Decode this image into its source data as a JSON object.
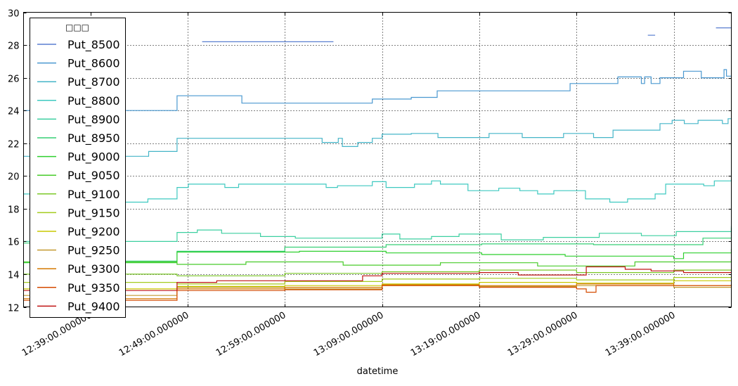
{
  "chart_data": {
    "type": "line",
    "title": "",
    "xlabel": "datetime",
    "ylabel": "",
    "ylim": [
      12,
      30
    ],
    "xlim": [
      "12:32:08",
      "13:44:55"
    ],
    "yticks": [
      12,
      14,
      16,
      18,
      20,
      22,
      24,
      26,
      28,
      30
    ],
    "xticks": [
      "12:39:00",
      "12:49:00",
      "12:59:00",
      "13:09:00",
      "13:19:00",
      "13:29:00",
      "13:39:00"
    ],
    "xtick_labels": [
      "12:39:00.000000",
      "12:49:00.000000",
      "12:59:00.000000",
      "13:09:00.000000",
      "13:19:00.000000",
      "13:29:00.000000",
      "13:39:00.000000"
    ],
    "grid": true,
    "legend": {
      "title": "□□□",
      "placement": "upper-left"
    },
    "step": true,
    "series": [
      {
        "name": "Put_8500",
        "color": "#5a7fd0",
        "segments": [
          [
            [
              "12:50:30",
              28.2
            ],
            [
              "13:04:00",
              28.2
            ]
          ],
          [
            [
              "13:36:20",
              28.6
            ],
            [
              "13:37:05",
              28.6
            ]
          ],
          [
            [
              "13:43:20",
              29.05
            ],
            [
              "13:44:55",
              29.1
            ]
          ]
        ]
      },
      {
        "name": "Put_8600",
        "color": "#4a98d0",
        "points": [
          [
            "12:32:08",
            24.0
          ],
          [
            "12:47:55",
            24.9
          ],
          [
            "12:54:35",
            24.45
          ],
          [
            "13:08:00",
            24.7
          ],
          [
            "13:12:00",
            24.8
          ],
          [
            "13:14:40",
            25.2
          ],
          [
            "13:28:20",
            25.65
          ],
          [
            "13:33:15",
            26.05
          ],
          [
            "13:35:40",
            25.65
          ],
          [
            "13:36:00",
            26.05
          ],
          [
            "13:36:40",
            25.65
          ],
          [
            "13:37:35",
            26.0
          ],
          [
            "13:40:00",
            26.4
          ],
          [
            "13:41:50",
            26.0
          ],
          [
            "13:44:10",
            26.5
          ],
          [
            "13:44:25",
            26.1
          ],
          [
            "13:44:55",
            26.1
          ]
        ]
      },
      {
        "name": "Put_8700",
        "color": "#45b5c8",
        "points": [
          [
            "12:32:08",
            21.2
          ],
          [
            "12:45:00",
            21.5
          ],
          [
            "12:47:55",
            22.3
          ],
          [
            "13:02:50",
            22.05
          ],
          [
            "13:04:30",
            22.3
          ],
          [
            "13:04:55",
            21.8
          ],
          [
            "13:06:30",
            22.05
          ],
          [
            "13:08:00",
            22.3
          ],
          [
            "13:09:00",
            22.55
          ],
          [
            "13:12:00",
            22.6
          ],
          [
            "13:14:45",
            22.35
          ],
          [
            "13:20:00",
            22.6
          ],
          [
            "13:23:25",
            22.35
          ],
          [
            "13:27:40",
            22.6
          ],
          [
            "13:30:45",
            22.35
          ],
          [
            "13:32:45",
            22.8
          ],
          [
            "13:37:35",
            23.2
          ],
          [
            "13:38:50",
            23.4
          ],
          [
            "13:40:05",
            23.2
          ],
          [
            "13:41:30",
            23.4
          ],
          [
            "13:44:00",
            23.2
          ],
          [
            "13:44:35",
            23.5
          ],
          [
            "13:44:55",
            23.5
          ]
        ]
      },
      {
        "name": "Put_8800",
        "color": "#3ec9c0",
        "points": [
          [
            "12:32:08",
            18.9
          ],
          [
            "12:42:35",
            18.4
          ],
          [
            "12:44:55",
            18.6
          ],
          [
            "12:47:55",
            19.3
          ],
          [
            "12:49:05",
            19.5
          ],
          [
            "12:52:50",
            19.3
          ],
          [
            "12:54:15",
            19.5
          ],
          [
            "13:03:15",
            19.3
          ],
          [
            "13:04:25",
            19.4
          ],
          [
            "13:08:00",
            19.65
          ],
          [
            "13:09:25",
            19.3
          ],
          [
            "13:12:20",
            19.5
          ],
          [
            "13:14:05",
            19.7
          ],
          [
            "13:15:00",
            19.5
          ],
          [
            "13:17:50",
            19.1
          ],
          [
            "13:21:00",
            19.25
          ],
          [
            "13:23:10",
            19.1
          ],
          [
            "13:25:00",
            18.9
          ],
          [
            "13:26:40",
            19.1
          ],
          [
            "13:29:55",
            18.6
          ],
          [
            "13:32:25",
            18.4
          ],
          [
            "13:34:15",
            18.6
          ],
          [
            "13:37:05",
            18.9
          ],
          [
            "13:38:10",
            19.5
          ],
          [
            "13:42:05",
            19.4
          ],
          [
            "13:43:10",
            19.7
          ],
          [
            "13:44:55",
            19.8
          ]
        ]
      },
      {
        "name": "Put_8900",
        "color": "#3ccfa0",
        "points": [
          [
            "12:32:08",
            16.0
          ],
          [
            "12:47:55",
            16.55
          ],
          [
            "12:50:00",
            16.7
          ],
          [
            "12:52:30",
            16.5
          ],
          [
            "12:56:30",
            16.3
          ],
          [
            "13:00:05",
            16.2
          ],
          [
            "13:09:00",
            16.45
          ],
          [
            "13:10:50",
            16.15
          ],
          [
            "13:14:05",
            16.3
          ],
          [
            "13:16:55",
            16.45
          ],
          [
            "13:21:15",
            16.1
          ],
          [
            "13:25:35",
            16.25
          ],
          [
            "13:31:20",
            16.5
          ],
          [
            "13:35:40",
            16.35
          ],
          [
            "13:39:15",
            16.6
          ],
          [
            "13:42:50",
            16.6
          ],
          [
            "13:44:55",
            16.95
          ]
        ]
      },
      {
        "name": "Put_8950",
        "color": "#36cf75",
        "points": [
          [
            "12:32:08",
            15.9
          ],
          [
            "12:40:00",
            14.8
          ],
          [
            "12:47:55",
            15.4
          ],
          [
            "12:59:00",
            15.65
          ],
          [
            "13:09:25",
            15.8
          ],
          [
            "13:19:15",
            15.85
          ],
          [
            "13:30:45",
            15.8
          ],
          [
            "13:42:00",
            16.2
          ],
          [
            "13:44:55",
            16.85
          ]
        ]
      },
      {
        "name": "Put_9000",
        "color": "#2ecf2e",
        "points": [
          [
            "12:32:08",
            14.7
          ],
          [
            "12:47:55",
            15.35
          ],
          [
            "13:00:30",
            15.4
          ],
          [
            "13:09:25",
            15.3
          ],
          [
            "13:19:15",
            15.2
          ],
          [
            "13:27:50",
            15.1
          ],
          [
            "13:39:00",
            14.95
          ],
          [
            "13:40:00",
            15.3
          ],
          [
            "13:44:55",
            15.55
          ]
        ]
      },
      {
        "name": "Put_9050",
        "color": "#48cb2a",
        "points": [
          [
            "12:32:08",
            14.75
          ],
          [
            "12:47:55",
            14.6
          ],
          [
            "12:55:00",
            14.75
          ],
          [
            "13:05:00",
            14.55
          ],
          [
            "13:15:00",
            14.7
          ],
          [
            "13:25:00",
            14.5
          ],
          [
            "13:35:00",
            14.75
          ],
          [
            "13:44:55",
            14.9
          ]
        ]
      },
      {
        "name": "Put_9100",
        "color": "#7cc828",
        "points": [
          [
            "12:32:08",
            14.0
          ],
          [
            "12:47:55",
            13.9
          ],
          [
            "12:59:00",
            14.05
          ],
          [
            "13:09:00",
            14.15
          ],
          [
            "13:19:00",
            14.25
          ],
          [
            "13:29:00",
            14.1
          ],
          [
            "13:39:00",
            14.25
          ],
          [
            "13:44:55",
            14.2
          ]
        ]
      },
      {
        "name": "Put_9150",
        "color": "#a4cc1e",
        "points": [
          [
            "12:32:08",
            13.5
          ],
          [
            "12:47:55",
            13.4
          ],
          [
            "12:59:00",
            13.55
          ],
          [
            "13:09:00",
            13.7
          ],
          [
            "13:19:00",
            13.75
          ],
          [
            "13:29:00",
            13.65
          ],
          [
            "13:39:00",
            13.8
          ],
          [
            "13:44:55",
            13.8
          ]
        ]
      },
      {
        "name": "Put_9200",
        "color": "#c8c800",
        "points": [
          [
            "12:32:08",
            13.1
          ],
          [
            "12:47:55",
            13.25
          ],
          [
            "12:59:00",
            13.3
          ],
          [
            "13:09:00",
            13.4
          ],
          [
            "13:19:00",
            13.5
          ],
          [
            "13:29:00",
            13.45
          ],
          [
            "13:39:00",
            13.6
          ],
          [
            "13:44:55",
            13.6
          ]
        ]
      },
      {
        "name": "Put_9250",
        "color": "#c49a30",
        "points": [
          [
            "12:32:08",
            12.7
          ],
          [
            "12:47:55",
            13.2
          ],
          [
            "12:59:00",
            13.1
          ],
          [
            "13:09:00",
            13.3
          ],
          [
            "13:19:00",
            13.25
          ],
          [
            "13:29:00",
            13.3
          ],
          [
            "13:39:00",
            13.2
          ],
          [
            "13:44:55",
            13.3
          ]
        ]
      },
      {
        "name": "Put_9300",
        "color": "#d47800",
        "points": [
          [
            "12:32:08",
            12.5
          ],
          [
            "12:47:55",
            13.1
          ],
          [
            "12:59:00",
            13.2
          ],
          [
            "13:09:00",
            13.35
          ],
          [
            "13:19:00",
            13.3
          ],
          [
            "13:29:00",
            13.4
          ],
          [
            "13:39:00",
            13.3
          ],
          [
            "13:44:55",
            13.4
          ]
        ]
      },
      {
        "name": "Put_9350",
        "color": "#d44a00",
        "points": [
          [
            "12:32:08",
            12.4
          ],
          [
            "12:47:55",
            13.0
          ],
          [
            "12:59:00",
            13.05
          ],
          [
            "13:09:00",
            13.3
          ],
          [
            "13:19:00",
            13.2
          ],
          [
            "13:29:00",
            13.1
          ],
          [
            "13:30:00",
            12.9
          ],
          [
            "13:31:00",
            13.3
          ],
          [
            "13:44:55",
            13.35
          ]
        ]
      },
      {
        "name": "Put_9400",
        "color": "#c01414",
        "points": [
          [
            "12:32:08",
            13.0
          ],
          [
            "12:47:55",
            13.5
          ],
          [
            "12:52:00",
            13.6
          ],
          [
            "13:07:00",
            13.9
          ],
          [
            "13:09:00",
            14.05
          ],
          [
            "13:19:00",
            14.1
          ],
          [
            "13:23:00",
            13.95
          ],
          [
            "13:30:00",
            14.45
          ],
          [
            "13:34:00",
            14.3
          ],
          [
            "13:36:40",
            14.2
          ],
          [
            "13:40:00",
            14.1
          ],
          [
            "13:44:55",
            14.1
          ]
        ]
      }
    ]
  }
}
